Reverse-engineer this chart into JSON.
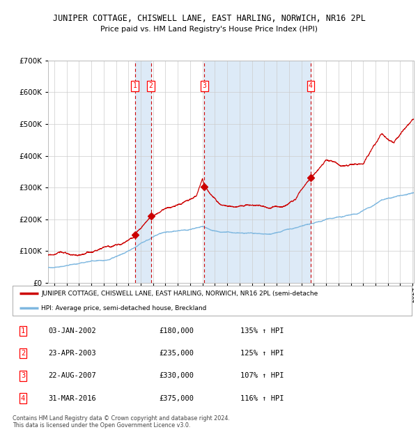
{
  "title": "JUNIPER COTTAGE, CHISWELL LANE, EAST HARLING, NORWICH, NR16 2PL",
  "subtitle": "Price paid vs. HM Land Registry's House Price Index (HPI)",
  "background_color": "#ffffff",
  "plot_bg_color": "#ffffff",
  "grid_color": "#cccccc",
  "hpi_line_color": "#7fb8e0",
  "price_line_color": "#cc0000",
  "highlight_bg_color": "#ddeaf7",
  "dashed_line_color": "#cc0000",
  "transactions": [
    {
      "label": "1",
      "date_num": 2002.03,
      "price": 180000
    },
    {
      "label": "2",
      "date_num": 2003.32,
      "price": 235000
    },
    {
      "label": "3",
      "date_num": 2007.65,
      "price": 330000
    },
    {
      "label": "4",
      "date_num": 2016.25,
      "price": 375000
    }
  ],
  "legend_entries": [
    "JUNIPER COTTAGE, CHISWELL LANE, EAST HARLING, NORWICH, NR16 2PL (semi-detache",
    "HPI: Average price, semi-detached house, Breckland"
  ],
  "table_rows": [
    [
      "1",
      "03-JAN-2002",
      "£180,000",
      "135% ↑ HPI"
    ],
    [
      "2",
      "23-APR-2003",
      "£235,000",
      "125% ↑ HPI"
    ],
    [
      "3",
      "22-AUG-2007",
      "£330,000",
      "107% ↑ HPI"
    ],
    [
      "4",
      "31-MAR-2016",
      "£375,000",
      "116% ↑ HPI"
    ]
  ],
  "footer": "Contains HM Land Registry data © Crown copyright and database right 2024.\nThis data is licensed under the Open Government Licence v3.0.",
  "ylim": [
    0,
    700000
  ],
  "yticks": [
    0,
    100000,
    200000,
    300000,
    400000,
    500000,
    600000,
    700000
  ],
  "xlim_start": 1995.0,
  "xlim_end": 2024.6,
  "seed": 42
}
